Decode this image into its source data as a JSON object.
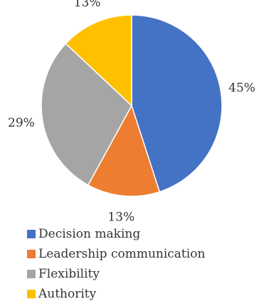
{
  "chart_data": {
    "type": "pie",
    "slices": [
      {
        "label": "Decision making",
        "value": 45,
        "value_label": "45%",
        "color": "#4472C4"
      },
      {
        "label": "Leadership communication",
        "value": 13,
        "value_label": "13%",
        "color": "#ED7D31"
      },
      {
        "label": "Flexibility",
        "value": 29,
        "value_label": "29%",
        "color": "#A5A5A5"
      },
      {
        "label": "Authority",
        "value": 13,
        "value_label": "13%",
        "color": "#FFC000"
      }
    ],
    "start_angle_deg": 0,
    "direction": "clockwise",
    "legend_position": "bottom-left"
  }
}
